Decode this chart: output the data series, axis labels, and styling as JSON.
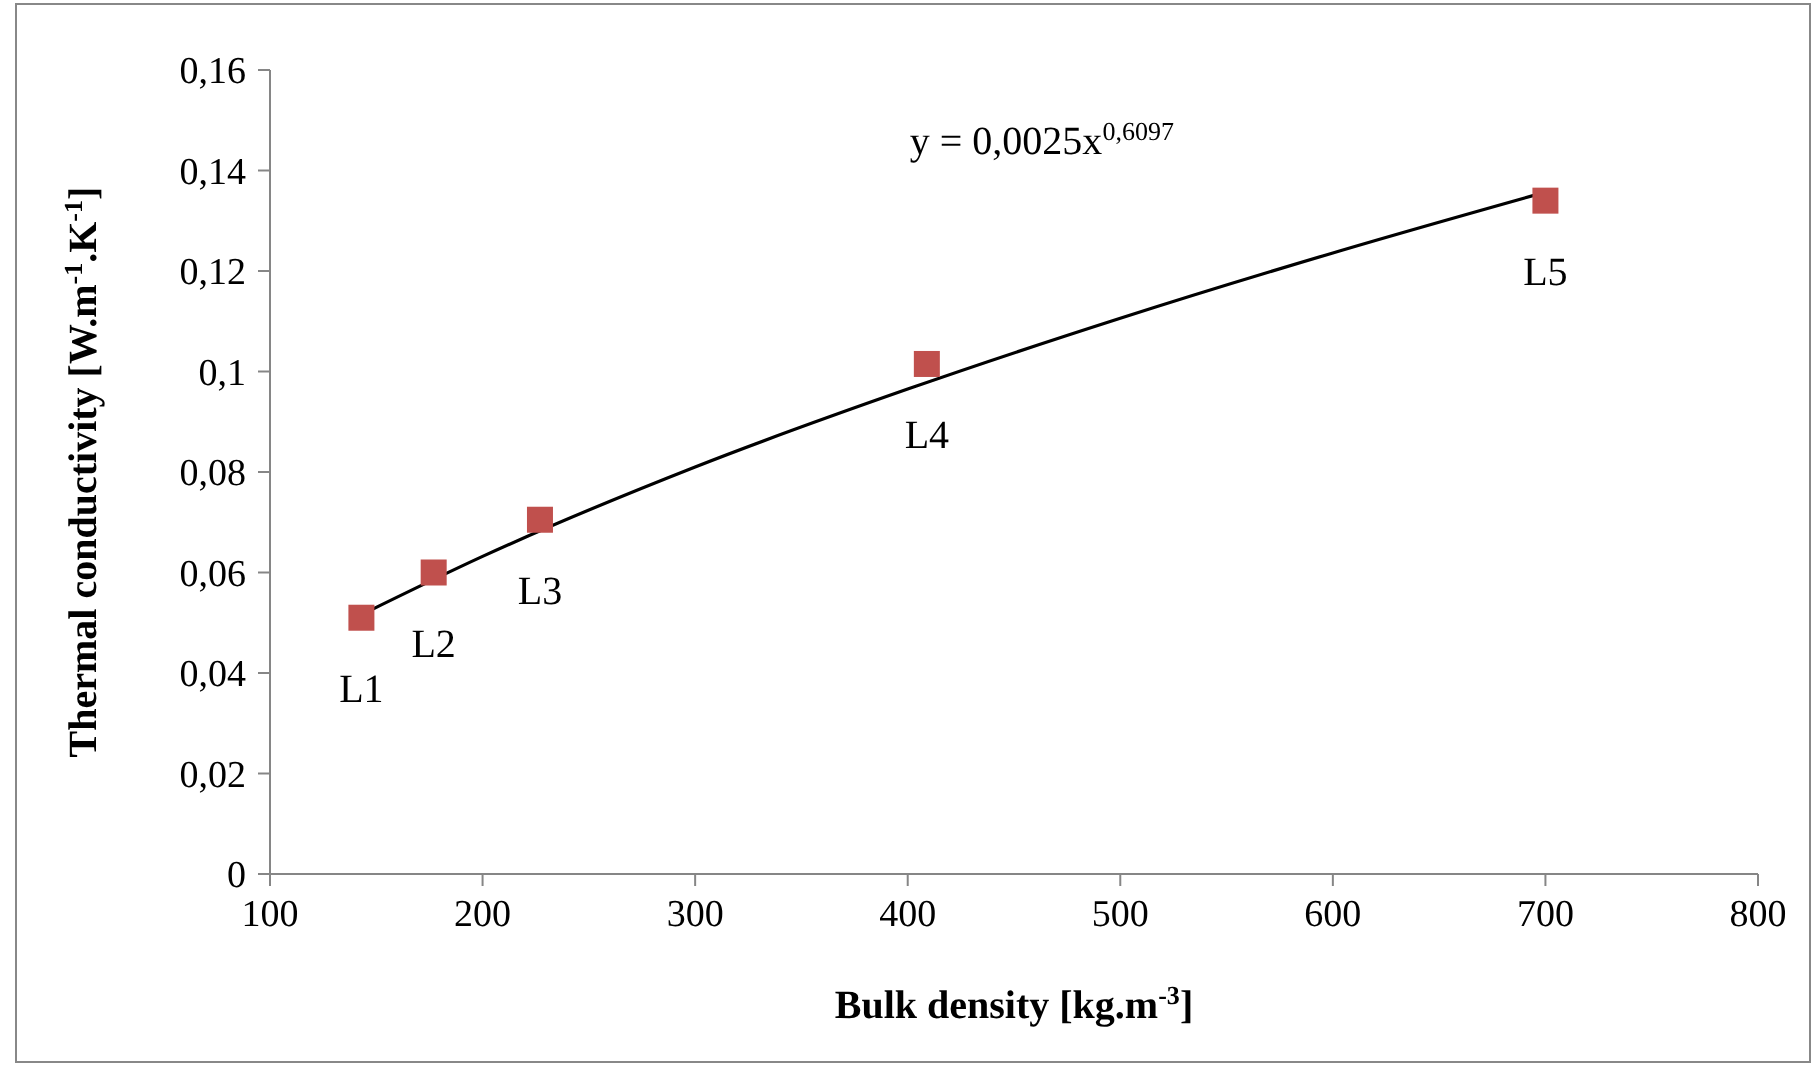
{
  "chart_data": {
    "type": "scatter",
    "xlabel": "Bulk density [kg.m$^{-3}$]",
    "ylabel": "Thermal conductivity [W.m$^{-1}$.K$^{-1}$]",
    "xlim": [
      100,
      800
    ],
    "xticks": [
      100,
      200,
      300,
      400,
      500,
      600,
      700,
      800
    ],
    "ylim": [
      0,
      0.16
    ],
    "yticks": [
      0,
      {
        "value": 0.02,
        "label": "0,02"
      },
      {
        "value": 0.04,
        "label": "0,04"
      },
      {
        "value": 0.06,
        "label": "0,06"
      },
      {
        "value": 0.08,
        "label": "0,08"
      },
      {
        "value": 0.1,
        "label": "0,1"
      },
      {
        "value": 0.12,
        "label": "0,12"
      },
      {
        "value": 0.14,
        "label": "0,14"
      },
      {
        "value": 0.16,
        "label": "0,16"
      }
    ],
    "grid": false,
    "series": [
      {
        "type": "line",
        "color": "#000000",
        "marker": "none",
        "line_style": "solid",
        "x": [
          143,
          200,
          300,
          400,
          500,
          600,
          700
        ],
        "values": [
          0.0516,
          0.0632,
          0.081,
          0.0965,
          0.1106,
          0.1236,
          0.1357
        ]
      },
      {
        "color": "#c0504d",
        "marker": "square",
        "x": [
          143,
          177,
          227,
          409,
          700
        ],
        "values": [
          0.051,
          0.06,
          0.0705,
          0.1015,
          0.134
        ]
      }
    ],
    "annotations": [
      "y = 0,0025x$^{0,6097}$",
      {
        "text": "L1",
        "x": 143,
        "y": 0.051
      },
      {
        "text": "L2",
        "x": 177,
        "y": 0.06
      },
      {
        "text": "L3",
        "x": 227,
        "y": 0.0705
      },
      {
        "text": "L4",
        "x": 409,
        "y": 0.1015
      },
      {
        "text": "L5",
        "x": 700,
        "y": 0.134
      }
    ]
  }
}
